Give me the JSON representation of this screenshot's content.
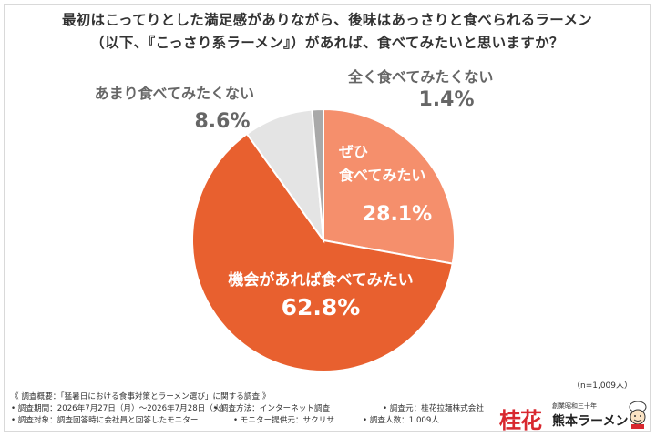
{
  "question": {
    "line1": "最初はこってりとした満足感がありながら、後味はあっさりと食べられるラーメン",
    "line2": "（以下、『こっさり系ラーメン』）があれば、食べてみたいと思いますか？"
  },
  "chart_data": {
    "type": "pie",
    "title": "最初はこってりとした満足感がありながら、後味はあっさりと食べられるラーメン（以下、『こっさり系ラーメン』）があれば、食べてみたいと思いますか？",
    "slices": [
      {
        "label": "ぜひ食べてみたい",
        "label_lines": [
          "ぜひ",
          "食べてみたい"
        ],
        "value": 28.1,
        "value_text": "28.1%",
        "color": "#f58f6c",
        "text_color": "#ffffff"
      },
      {
        "label": "機会があれば食べてみたい",
        "label_lines": [
          "機会があれば食べてみたい"
        ],
        "value": 62.8,
        "value_text": "62.8%",
        "color": "#e8602f",
        "text_color": "#ffffff"
      },
      {
        "label": "あまり食べてみたくない",
        "label_lines": [
          "あまり食べてみたくない"
        ],
        "value": 8.6,
        "value_text": "8.6%",
        "color": "#e4e4e4",
        "text_color": "#666666"
      },
      {
        "label": "全く食べてみたくない",
        "label_lines": [
          "全く食べてみたくない"
        ],
        "value": 1.4,
        "value_text": "1.4%",
        "color": "#a9a9a9",
        "text_color": "#666666"
      }
    ],
    "sample_size": "（n=1,009人）",
    "start": "12 o'clock",
    "direction": "clockwise"
  },
  "footer": {
    "survey_title": "《 調査概要：「猛暑日における食事対策とラーメン選び」に関する調査 》",
    "period": "• 調査期間：2026年7月27日（月）〜2026年7月28日（火）",
    "method": "• 調査方法：インターネット調査",
    "source": "• 調査元：桂花拉麺株式会社",
    "target": "• 調査対象：調査回答時に会社員と回答したモニター",
    "provider": "• モニター提供元：サクリサ",
    "count": "• 調査人数：1,009人"
  },
  "logo": {
    "kanji": "桂花",
    "est": "創業昭和三十年",
    "name": "熊本ラーメン"
  }
}
